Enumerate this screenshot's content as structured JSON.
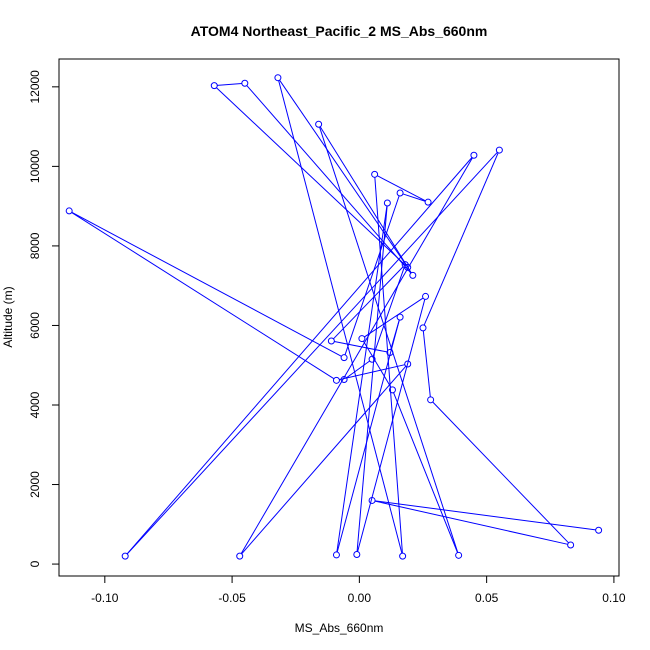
{
  "chart_data": {
    "type": "line",
    "title": "ATOM4 Northeast_Pacific_2 MS_Abs_660nm",
    "xlabel": "MS_Abs_660nm",
    "ylabel": "Altitude (m)",
    "xlim": [
      -0.118,
      0.102
    ],
    "ylim": [
      -300,
      12700
    ],
    "xticks": [
      -0.1,
      -0.05,
      0.0,
      0.05,
      0.1
    ],
    "xtick_labels": [
      "-0.10",
      "-0.05",
      "0.00",
      "0.05",
      "0.10"
    ],
    "yticks": [
      0,
      2000,
      4000,
      6000,
      8000,
      10000,
      12000
    ],
    "ytick_labels": [
      "0",
      "2000",
      "4000",
      "6000",
      "8000",
      "10000",
      "12000"
    ],
    "grid": false,
    "legend": "none",
    "series": [
      {
        "color": "#0000ff",
        "marker": "open-circle",
        "points": [
          {
            "x": 0.094,
            "y": 850
          },
          {
            "x": 0.005,
            "y": 1600
          },
          {
            "x": 0.083,
            "y": 480
          },
          {
            "x": 0.028,
            "y": 4130
          },
          {
            "x": 0.025,
            "y": 5940
          },
          {
            "x": 0.055,
            "y": 10410
          },
          {
            "x": -0.092,
            "y": 200
          },
          {
            "x": 0.045,
            "y": 10280
          },
          {
            "x": -0.047,
            "y": 200
          },
          {
            "x": 0.019,
            "y": 5030
          },
          {
            "x": -0.009,
            "y": 4620
          },
          {
            "x": -0.114,
            "y": 8880
          },
          {
            "x": -0.006,
            "y": 5190
          },
          {
            "x": 0.016,
            "y": 9330
          },
          {
            "x": 0.027,
            "y": 9100
          },
          {
            "x": 0.006,
            "y": 9800
          },
          {
            "x": 0.017,
            "y": 200
          },
          {
            "x": -0.032,
            "y": 12230
          },
          {
            "x": 0.019,
            "y": 7460
          },
          {
            "x": -0.057,
            "y": 12030
          },
          {
            "x": -0.045,
            "y": 12090
          },
          {
            "x": 0.021,
            "y": 7260
          },
          {
            "x": -0.016,
            "y": 11060
          },
          {
            "x": 0.039,
            "y": 220
          },
          {
            "x": 0.013,
            "y": 4380
          },
          {
            "x": 0.001,
            "y": 5670
          },
          {
            "x": 0.026,
            "y": 6730
          },
          {
            "x": -0.001,
            "y": 240
          },
          {
            "x": 0.011,
            "y": 9080
          },
          {
            "x": -0.009,
            "y": 230
          },
          {
            "x": 0.016,
            "y": 6210
          },
          {
            "x": 0.012,
            "y": 5320
          },
          {
            "x": -0.011,
            "y": 5610
          },
          {
            "x": 0.018,
            "y": 7530
          },
          {
            "x": 0.005,
            "y": 5150
          },
          {
            "x": -0.006,
            "y": 4640
          }
        ]
      }
    ]
  }
}
